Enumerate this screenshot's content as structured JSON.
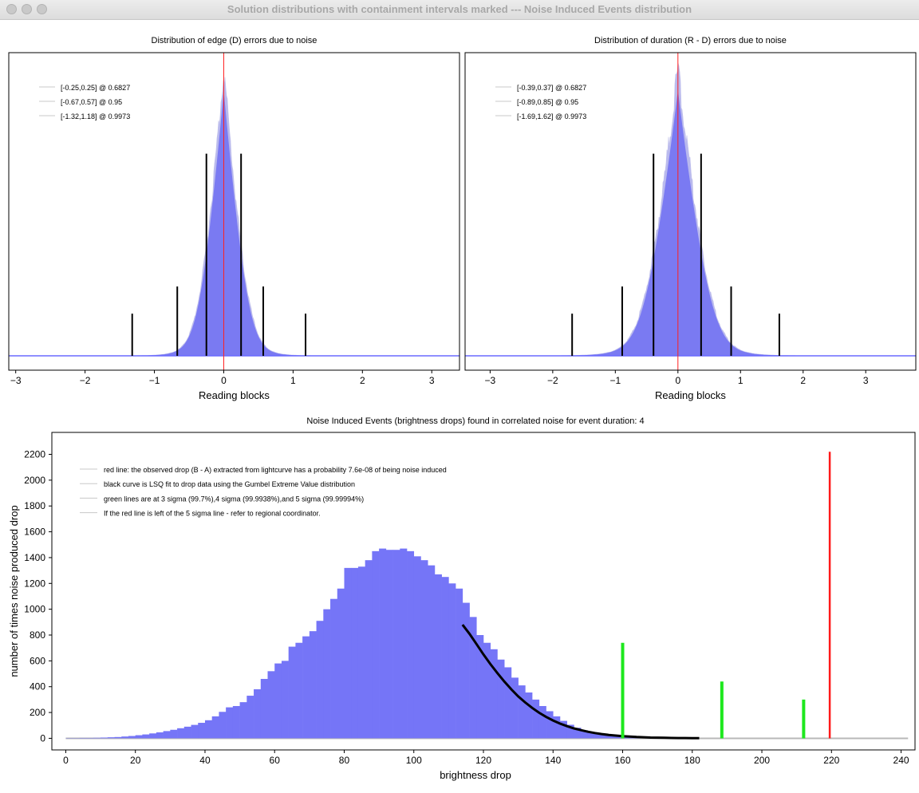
{
  "window": {
    "title": "Solution distributions with containment intervals marked --- Noise Induced Events distribution"
  },
  "chart_data": [
    {
      "type": "bar",
      "title": "Distribution of edge (D) errors due to noise",
      "xlabel": "Reading blocks",
      "ylabel": "",
      "xlim": [
        -3.1,
        3.4
      ],
      "xticks": [
        -3,
        -2,
        -1,
        0,
        1,
        2,
        3
      ],
      "grid": false,
      "legend_position": "top-left",
      "legend": [
        "[-0.25,0.25] @ 0.6827",
        "[-0.67,0.57] @ 0.95",
        "[-1.32,1.18] @ 0.9973"
      ],
      "center_line_x": 0,
      "histogram_sigma": 0.3,
      "interval_markers": [
        {
          "x": -0.25,
          "level": 0.6827
        },
        {
          "x": 0.25,
          "level": 0.6827
        },
        {
          "x": -0.67,
          "level": 0.95
        },
        {
          "x": 0.57,
          "level": 0.95
        },
        {
          "x": -1.32,
          "level": 0.9973
        },
        {
          "x": 1.18,
          "level": 0.9973
        }
      ],
      "colors": {
        "histogram": "#7a7af2",
        "center_line": "#ff2020",
        "markers": "#000000"
      }
    },
    {
      "type": "bar",
      "title": "Distribution of duration (R - D) errors due to noise",
      "xlabel": "Reading blocks",
      "ylabel": "",
      "xlim": [
        -3.4,
        3.8
      ],
      "xticks": [
        -3,
        -2,
        -1,
        0,
        1,
        2,
        3
      ],
      "grid": false,
      "legend_position": "top-left",
      "legend": [
        "[-0.39,0.37] @ 0.6827",
        "[-0.89,0.85] @ 0.95",
        "[-1.69,1.62] @ 0.9973"
      ],
      "center_line_x": 0,
      "histogram_sigma": 0.45,
      "interval_markers": [
        {
          "x": -0.39,
          "level": 0.6827
        },
        {
          "x": 0.37,
          "level": 0.6827
        },
        {
          "x": -0.89,
          "level": 0.95
        },
        {
          "x": 0.85,
          "level": 0.95
        },
        {
          "x": -1.69,
          "level": 0.9973
        },
        {
          "x": 1.62,
          "level": 0.9973
        }
      ],
      "colors": {
        "histogram": "#7a7af2",
        "center_line": "#ff2020",
        "markers": "#000000"
      }
    },
    {
      "type": "bar",
      "title": "Noise Induced Events (brightness drops) found in correlated noise for event duration: 4",
      "xlabel": "brightness drop",
      "ylabel": "number of times noise produced drop",
      "xlim": [
        -4,
        244
      ],
      "ylim": [
        -90,
        2370
      ],
      "xticks": [
        0,
        20,
        40,
        60,
        80,
        100,
        120,
        140,
        160,
        180,
        200,
        220,
        240
      ],
      "yticks": [
        0,
        200,
        400,
        600,
        800,
        1000,
        1200,
        1400,
        1600,
        1800,
        2000,
        2200
      ],
      "grid": false,
      "legend_position": "top-left",
      "legend": [
        "red line: the observed drop (B - A) extracted from lightcurve has a probability 7.6e-08 of being noise induced",
        "black curve is LSQ fit to drop data using the Gumbel Extreme Value distribution",
        "green lines are at 3 sigma (99.7%),4 sigma (99.9938%),and 5 sigma (99.99994%)",
        "If the red line is left of the 5 sigma line - refer to regional coordinator."
      ],
      "bin_width": 2,
      "histogram": {
        "x": [
          0,
          2,
          4,
          6,
          8,
          10,
          12,
          14,
          16,
          18,
          20,
          22,
          24,
          26,
          28,
          30,
          32,
          34,
          36,
          38,
          40,
          42,
          44,
          46,
          48,
          50,
          52,
          54,
          56,
          58,
          60,
          62,
          64,
          66,
          68,
          70,
          72,
          74,
          76,
          78,
          80,
          82,
          84,
          86,
          88,
          90,
          92,
          94,
          96,
          98,
          100,
          102,
          104,
          106,
          108,
          110,
          112,
          114,
          116,
          118,
          120,
          122,
          124,
          126,
          128,
          130,
          132,
          134,
          136,
          138,
          140,
          142,
          144,
          146,
          148,
          150,
          152,
          154,
          156,
          158,
          160,
          162,
          164,
          166,
          168,
          170,
          172,
          174,
          176,
          178,
          180,
          182
        ],
        "y": [
          2,
          2,
          3,
          3,
          4,
          6,
          8,
          10,
          14,
          18,
          24,
          30,
          38,
          46,
          56,
          66,
          78,
          90,
          104,
          120,
          140,
          170,
          205,
          240,
          250,
          280,
          330,
          380,
          460,
          520,
          580,
          600,
          710,
          740,
          790,
          830,
          910,
          1000,
          1080,
          1160,
          1320,
          1320,
          1330,
          1380,
          1450,
          1470,
          1460,
          1460,
          1470,
          1450,
          1410,
          1380,
          1340,
          1270,
          1250,
          1200,
          1160,
          1050,
          940,
          800,
          740,
          690,
          610,
          550,
          470,
          410,
          355,
          300,
          250,
          210,
          170,
          135,
          105,
          82,
          62,
          46,
          34,
          25,
          18,
          13,
          9,
          6,
          4,
          3,
          2,
          2,
          1,
          1,
          1,
          0,
          0,
          0
        ]
      },
      "gumbel_fit": {
        "x": [
          114,
          116,
          118,
          120,
          122,
          124,
          126,
          128,
          130,
          132,
          134,
          136,
          138,
          140,
          142,
          144,
          146,
          148,
          150,
          152,
          154,
          156,
          158,
          160,
          162,
          164,
          166,
          168,
          170,
          172,
          174,
          176,
          178,
          180,
          182
        ],
        "y": [
          880,
          810,
          730,
          650,
          575,
          505,
          440,
          380,
          325,
          278,
          236,
          198,
          166,
          138,
          114,
          94,
          77,
          63,
          51,
          41,
          33,
          26,
          21,
          17,
          13,
          10,
          8,
          6,
          5,
          4,
          3,
          2,
          2,
          1,
          1
        ]
      },
      "observed_drop": {
        "x": 219.5,
        "y": 2220
      },
      "sigma_lines": [
        {
          "label": "3 sigma",
          "x": 160,
          "y": 740
        },
        {
          "label": "4 sigma",
          "x": 188.5,
          "y": 440
        },
        {
          "label": "5 sigma",
          "x": 212,
          "y": 300
        }
      ],
      "colors": {
        "histogram": "#7575f7",
        "fit": "#000000",
        "observed": "#ff1a1a",
        "sigma": "#1ee81e"
      }
    }
  ]
}
